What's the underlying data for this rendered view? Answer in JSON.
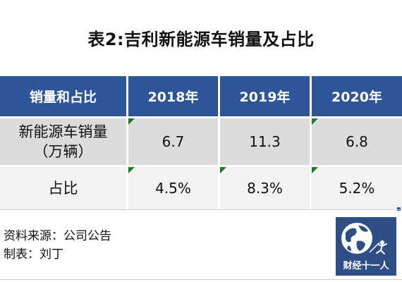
{
  "title": "表2:吉利新能源车销量及占比",
  "table": {
    "headers": [
      "销量和占比",
      "2018年",
      "2019年",
      "2020年"
    ],
    "rows": [
      {
        "label_line1": "新能源车销量",
        "label_line2": "（万辆）",
        "values": [
          "6.7",
          "11.3",
          "6.8"
        ]
      },
      {
        "label_line1": "占比",
        "values": [
          "4.5%",
          "8.3%",
          "5.2%"
        ]
      }
    ]
  },
  "footer": {
    "source": "资料来源：公司公告",
    "maker": "制表：刘丁"
  },
  "logo": {
    "text": "财经十一人",
    "colors": {
      "bg": "#2e4f86",
      "globe": "#ffffff"
    }
  },
  "colors": {
    "header_bg": "#2e5597",
    "row1_bg": "#dcdcdc",
    "row2_bg": "#f2f2f2",
    "marker": "#1e7a22"
  }
}
